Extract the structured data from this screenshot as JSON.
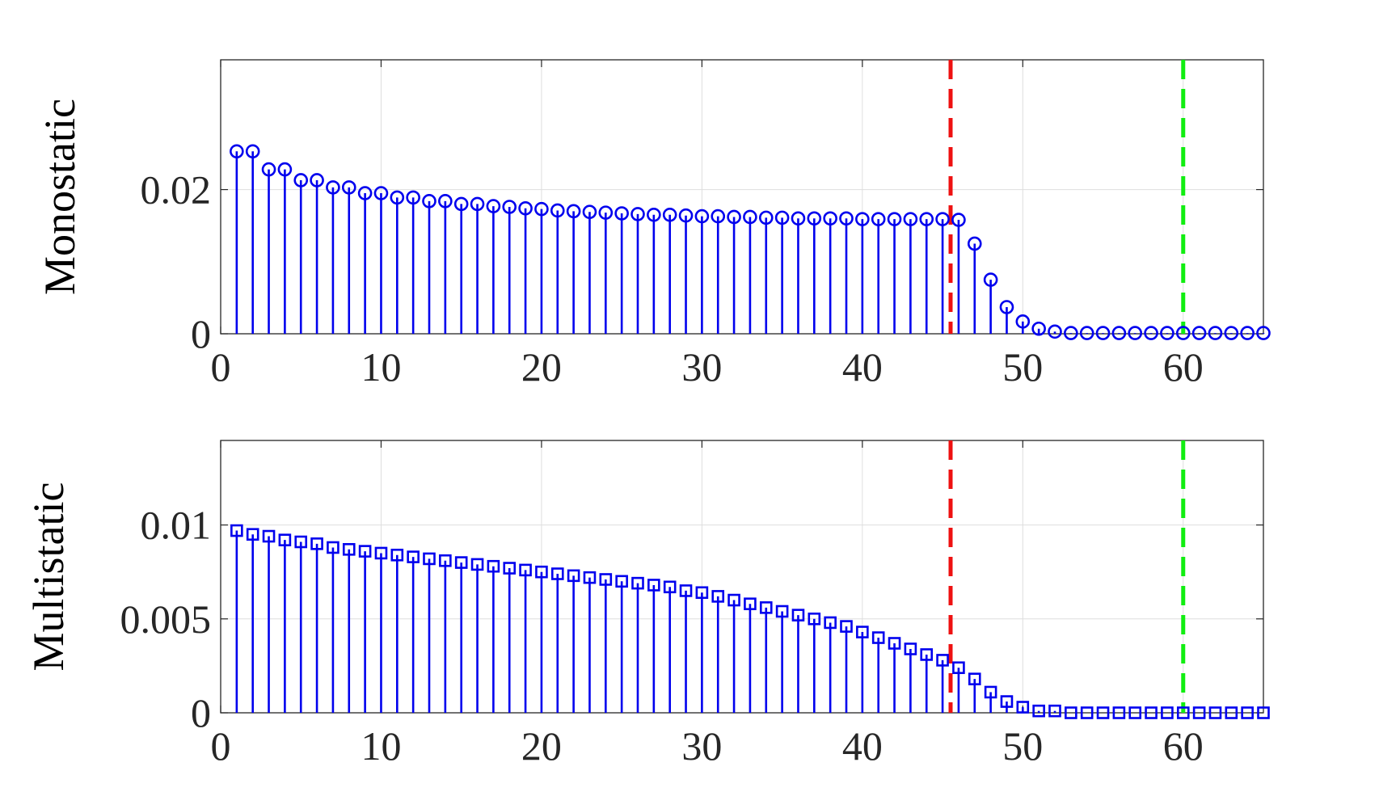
{
  "chart_data": [
    {
      "type": "stem",
      "title": "",
      "xlabel": "",
      "ylabel": "Monostatic",
      "xlim": [
        0,
        65
      ],
      "ylim": [
        0,
        0.038
      ],
      "xticks": [
        0,
        10,
        20,
        30,
        40,
        50,
        60
      ],
      "xtick_labels": [
        "0",
        "10",
        "20",
        "30",
        "40",
        "50",
        "60"
      ],
      "yticks": [
        0,
        0.02
      ],
      "ytick_labels": [
        "0",
        "0.02"
      ],
      "grid": true,
      "marker": "circle",
      "series_color": "#0000ee",
      "x": [
        1,
        2,
        3,
        4,
        5,
        6,
        7,
        8,
        9,
        10,
        11,
        12,
        13,
        14,
        15,
        16,
        17,
        18,
        19,
        20,
        21,
        22,
        23,
        24,
        25,
        26,
        27,
        28,
        29,
        30,
        31,
        32,
        33,
        34,
        35,
        36,
        37,
        38,
        39,
        40,
        41,
        42,
        43,
        44,
        45,
        46,
        47,
        48,
        49,
        50,
        51,
        52,
        53,
        54,
        55,
        56,
        57,
        58,
        59,
        60,
        61,
        62,
        63,
        64,
        65
      ],
      "values": [
        0.0253,
        0.0253,
        0.0228,
        0.0228,
        0.0213,
        0.0213,
        0.0203,
        0.0203,
        0.0195,
        0.0195,
        0.0189,
        0.0189,
        0.0184,
        0.0184,
        0.018,
        0.018,
        0.0177,
        0.0176,
        0.0174,
        0.0173,
        0.0171,
        0.017,
        0.0169,
        0.0168,
        0.0167,
        0.0166,
        0.0165,
        0.0165,
        0.0164,
        0.0163,
        0.0163,
        0.0162,
        0.0162,
        0.0161,
        0.0161,
        0.016,
        0.016,
        0.016,
        0.016,
        0.0159,
        0.0159,
        0.0159,
        0.0159,
        0.0159,
        0.0159,
        0.0158,
        0.0125,
        0.0075,
        0.0037,
        0.0017,
        0.0007,
        0.0003,
        0.0001,
        0.0001,
        0.0001,
        0.0001,
        0.0001,
        0.0001,
        0.0001,
        0.0001,
        0.0001,
        0.0001,
        0.0001,
        0.0001,
        0.0001
      ],
      "reference_lines": [
        {
          "x": 45.5,
          "color": "#ee1111",
          "style": "dashed"
        },
        {
          "x": 60,
          "color": "#11ee11",
          "style": "dashed"
        }
      ]
    },
    {
      "type": "stem",
      "title": "",
      "xlabel": "",
      "ylabel": "Multistatic",
      "xlim": [
        0,
        65
      ],
      "ylim": [
        0,
        0.0145
      ],
      "xticks": [
        0,
        10,
        20,
        30,
        40,
        50,
        60
      ],
      "xtick_labels": [
        "0",
        "10",
        "20",
        "30",
        "40",
        "50",
        "60"
      ],
      "yticks": [
        0,
        0.005,
        0.01
      ],
      "ytick_labels": [
        "0",
        "0.005",
        "0.01"
      ],
      "grid": true,
      "marker": "square",
      "series_color": "#0000ee",
      "x": [
        1,
        2,
        3,
        4,
        5,
        6,
        7,
        8,
        9,
        10,
        11,
        12,
        13,
        14,
        15,
        16,
        17,
        18,
        19,
        20,
        21,
        22,
        23,
        24,
        25,
        26,
        27,
        28,
        29,
        30,
        31,
        32,
        33,
        34,
        35,
        36,
        37,
        38,
        39,
        40,
        41,
        42,
        43,
        44,
        45,
        46,
        47,
        48,
        49,
        50,
        51,
        52,
        53,
        54,
        55,
        56,
        57,
        58,
        59,
        60,
        61,
        62,
        63,
        64,
        65
      ],
      "values": [
        0.0097,
        0.0095,
        0.0094,
        0.0092,
        0.0091,
        0.009,
        0.0088,
        0.0087,
        0.0086,
        0.0085,
        0.0084,
        0.0083,
        0.0082,
        0.0081,
        0.008,
        0.0079,
        0.0078,
        0.0077,
        0.0076,
        0.0075,
        0.0074,
        0.0073,
        0.0072,
        0.0071,
        0.007,
        0.0069,
        0.0068,
        0.0067,
        0.0065,
        0.0064,
        0.0062,
        0.006,
        0.0058,
        0.0056,
        0.0054,
        0.0052,
        0.005,
        0.0048,
        0.0046,
        0.0043,
        0.004,
        0.0037,
        0.0034,
        0.0031,
        0.0028,
        0.0024,
        0.0018,
        0.0011,
        0.0006,
        0.0003,
        0.0001,
        0.0001,
        0.0,
        0.0,
        0.0,
        0.0,
        0.0,
        0.0,
        0.0,
        0.0,
        0.0,
        0.0,
        0.0,
        0.0,
        0.0
      ],
      "reference_lines": [
        {
          "x": 45.5,
          "color": "#ee1111",
          "style": "dashed"
        },
        {
          "x": 60,
          "color": "#11ee11",
          "style": "dashed"
        }
      ]
    }
  ]
}
